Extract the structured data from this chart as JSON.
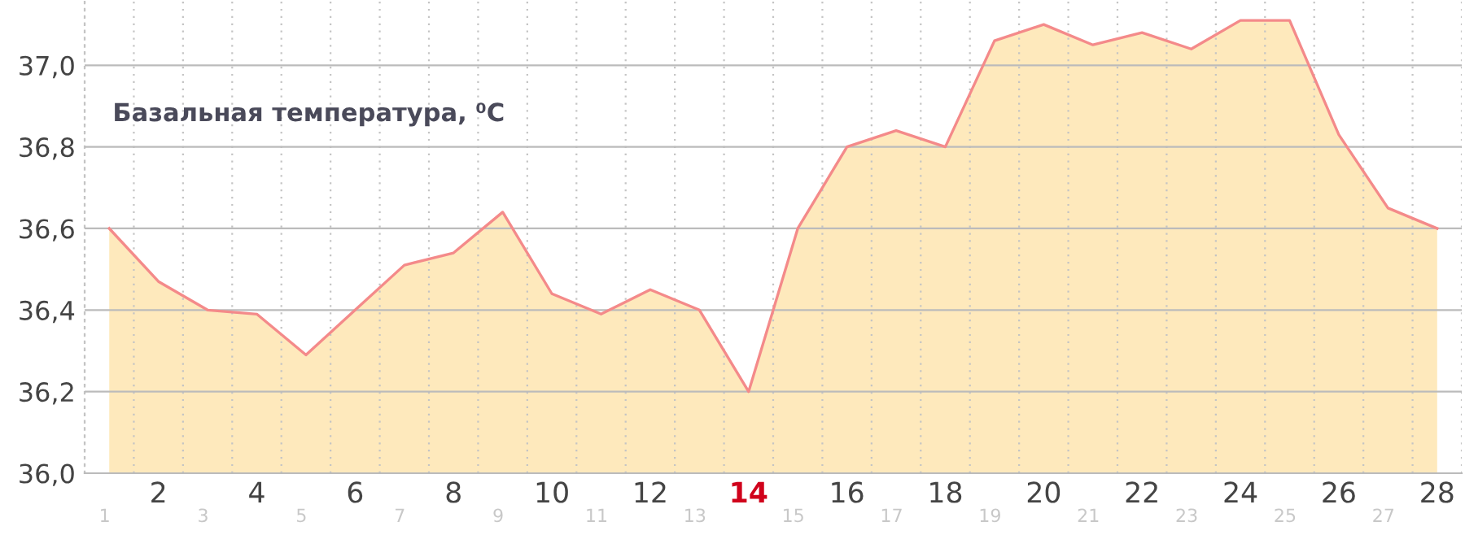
{
  "chart_data": {
    "type": "area",
    "title": "Базальная температура, ⁰C",
    "categories": [
      "1",
      "2",
      "3",
      "4",
      "5",
      "6",
      "7",
      "8",
      "9",
      "10",
      "11",
      "12",
      "13",
      "14",
      "15",
      "16",
      "17",
      "18",
      "19",
      "20",
      "21",
      "22",
      "23",
      "24",
      "25",
      "26",
      "27",
      "28"
    ],
    "series": [
      {
        "color": "#f48a8a",
        "values": [
          36.6,
          36.47,
          36.4,
          36.39,
          36.29,
          36.4,
          36.51,
          36.54,
          36.64,
          36.44,
          36.39,
          36.45,
          36.4,
          36.2,
          36.6,
          36.8,
          36.84,
          36.8,
          37.06,
          37.1,
          37.05,
          37.08,
          37.04,
          37.11,
          37.11,
          36.83,
          36.65,
          36.6
        ]
      }
    ],
    "ylim": [
      36.0,
      37.16
    ],
    "yticks": [
      {
        "value": 36.0,
        "label": "36,0"
      },
      {
        "value": 36.2,
        "label": "36,2"
      },
      {
        "value": 36.4,
        "label": "36,4"
      },
      {
        "value": 36.6,
        "label": "36,6"
      },
      {
        "value": 36.8,
        "label": "36,8"
      },
      {
        "value": 37.0,
        "label": "37,0"
      }
    ],
    "grid": true,
    "legend": false,
    "marker": "none",
    "line_style": "solid"
  }
}
